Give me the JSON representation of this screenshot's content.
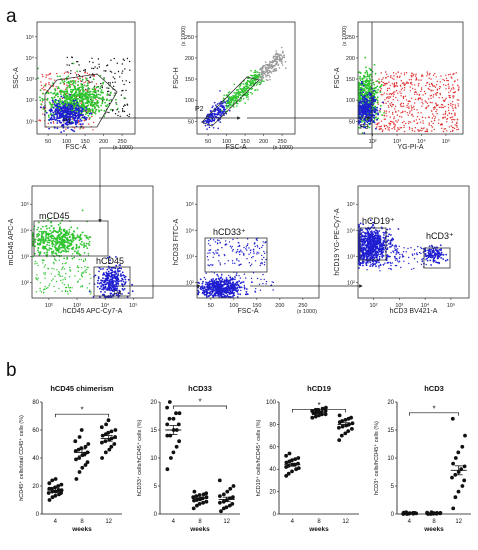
{
  "panel_a_label": "a",
  "panel_b_label": "b",
  "flow_plots": [
    {
      "id": "p1",
      "xlabel": "FSC-A",
      "xunit": "(x 1000)",
      "ylabel": "SSC-A",
      "xticks": [
        "50",
        "100",
        "150",
        "200",
        "250"
      ],
      "yticks": [
        "10¹",
        "10²",
        "10³",
        "10⁴",
        "10⁵"
      ],
      "gates": [
        "P1"
      ],
      "xscale": "linear",
      "yscale": "log"
    },
    {
      "id": "p2",
      "xlabel": "FSC-A",
      "xunit": "(x 1000)",
      "ylabel": "FSC-H",
      "yunit": "(x 1000)",
      "xticks": [
        "50",
        "100",
        "150",
        "200",
        "250"
      ],
      "yticks": [
        "50",
        "100",
        "150",
        "200",
        "250"
      ],
      "gates": [
        "P2"
      ],
      "xscale": "linear",
      "yscale": "linear"
    },
    {
      "id": "p3",
      "xlabel": "YG-PI-A",
      "ylabel": "FSC-A",
      "yunit": "(x 1000)",
      "xticks": [
        "10²",
        "10³",
        "10⁴",
        "10⁵"
      ],
      "yticks": [
        "50",
        "100",
        "150",
        "200",
        "250"
      ],
      "gates": [
        "P3"
      ],
      "xscale": "log",
      "yscale": "linear"
    },
    {
      "id": "p4",
      "xlabel": "hCD45 APC-Cy7-A",
      "ylabel": "mCD45 APC-A",
      "xticks": [
        "10²",
        "10³",
        "10⁴",
        "10⁵"
      ],
      "yticks": [
        "10²",
        "10³",
        "10⁴",
        "10⁵"
      ],
      "gates": [
        "mCD45",
        "hCD45",
        "P4"
      ],
      "xscale": "log",
      "yscale": "log"
    },
    {
      "id": "p5",
      "xlabel": "FSC-A",
      "ylabel": "hCD33 FITC-A",
      "xunit": "(x 1000)",
      "xticks": [
        "50",
        "100",
        "150",
        "200",
        "250"
      ],
      "yticks": [
        "10²",
        "10³",
        "10⁴",
        "10⁵"
      ],
      "gates": [
        "hCD33⁺"
      ],
      "xscale": "linear",
      "yscale": "log"
    },
    {
      "id": "p6",
      "xlabel": "hCD3 BV421-A",
      "ylabel": "hCD19 YG-PE-Cy7-A",
      "xticks": [
        "10²",
        "10³",
        "10⁴",
        "10⁵"
      ],
      "yticks": [
        "10²",
        "10³",
        "10⁴",
        "10⁵"
      ],
      "gates": [
        "hCD19⁺",
        "hCD3⁺"
      ],
      "xscale": "log",
      "yscale": "log"
    }
  ],
  "chart_data": [
    {
      "type": "scatter",
      "title": "hCD45 chimerism",
      "xlabel": "weeks",
      "ylabel": "hCD45⁺ cells/total CD45⁺ cells (%)",
      "categories": [
        "4",
        "8",
        "12"
      ],
      "ylim": [
        0,
        80
      ],
      "yticks": [
        "0",
        "20",
        "40",
        "60",
        "80"
      ],
      "significance": "*",
      "sig_from": "4",
      "sig_to": "12",
      "series": [
        {
          "category": "4",
          "values": [
            10,
            12,
            13,
            14,
            15,
            15,
            16,
            16,
            17,
            17,
            18,
            18,
            19,
            20,
            21,
            22,
            24,
            25
          ]
        },
        {
          "category": "8",
          "values": [
            25,
            30,
            33,
            35,
            37,
            39,
            40,
            42,
            43,
            44,
            45,
            46,
            47,
            48,
            50,
            52,
            55,
            60
          ]
        },
        {
          "category": "12",
          "values": [
            40,
            44,
            46,
            48,
            50,
            51,
            52,
            53,
            54,
            55,
            56,
            57,
            58,
            59,
            60,
            62,
            64,
            67
          ]
        }
      ],
      "means": [
        17,
        44,
        54
      ],
      "sem": [
        1.5,
        2.5,
        2
      ]
    },
    {
      "type": "scatter",
      "title": "hCD33",
      "xlabel": "weeks",
      "ylabel": "hCD33⁺ cells/hCD45⁺ cells (%)",
      "categories": [
        "4",
        "8",
        "12"
      ],
      "ylim": [
        0,
        20
      ],
      "yticks": [
        "0",
        "5",
        "10",
        "15",
        "20"
      ],
      "significance": "*",
      "sig_from": "4",
      "sig_to": "12",
      "series": [
        {
          "category": "4",
          "values": [
            8,
            10,
            11,
            12,
            13,
            14,
            14,
            15,
            15,
            16,
            16,
            17,
            17,
            18,
            18,
            19,
            20
          ]
        },
        {
          "category": "8",
          "values": [
            1,
            1.5,
            1.8,
            2,
            2.2,
            2.4,
            2.5,
            2.6,
            2.8,
            3,
            3,
            3.2,
            3.4,
            3.5,
            3.7,
            4
          ]
        },
        {
          "category": "12",
          "values": [
            0.5,
            1,
            1.2,
            1.5,
            1.8,
            2,
            2.2,
            2.5,
            2.8,
            3,
            3.2,
            3.5,
            4,
            4.5,
            5,
            6
          ]
        }
      ],
      "means": [
        15,
        2.8,
        2.6
      ],
      "sem": [
        0.8,
        0.2,
        0.4
      ]
    },
    {
      "type": "scatter",
      "title": "hCD19",
      "xlabel": "weeks",
      "ylabel": "hCD19⁺ cells/hCD45⁺ cells (%)",
      "categories": [
        "4",
        "8",
        "12"
      ],
      "ylim": [
        0,
        100
      ],
      "yticks": [
        "0",
        "20",
        "40",
        "60",
        "80",
        "100"
      ],
      "significance": "*",
      "sig_from": "4",
      "sig_to": "12",
      "series": [
        {
          "category": "4",
          "values": [
            34,
            36,
            38,
            40,
            41,
            42,
            43,
            44,
            44,
            45,
            46,
            47,
            48,
            49,
            50,
            52,
            54
          ]
        },
        {
          "category": "8",
          "values": [
            86,
            87,
            88,
            89,
            89,
            90,
            90,
            91,
            91,
            92,
            92,
            93,
            93,
            94,
            95
          ]
        },
        {
          "category": "12",
          "values": [
            66,
            70,
            72,
            74,
            76,
            77,
            78,
            79,
            80,
            81,
            82,
            83,
            84,
            85,
            86,
            88
          ]
        }
      ],
      "means": [
        44,
        91,
        80
      ],
      "sem": [
        1.3,
        0.6,
        1.5
      ]
    },
    {
      "type": "scatter",
      "title": "hCD3",
      "xlabel": "weeks",
      "ylabel": "hCD3⁺ cells/hCD45⁺ cells (%)",
      "categories": [
        "4",
        "8",
        "12"
      ],
      "ylim": [
        0,
        20
      ],
      "yticks": [
        "0",
        "5",
        "10",
        "15",
        "20"
      ],
      "significance": "*",
      "sig_from": "4",
      "sig_to": "12",
      "series": [
        {
          "category": "4",
          "values": [
            0,
            0,
            0.05,
            0.05,
            0.1,
            0.1,
            0.1,
            0.15,
            0.2,
            0.2,
            0.25,
            0.3
          ]
        },
        {
          "category": "8",
          "values": [
            0,
            0,
            0.05,
            0.05,
            0.1,
            0.1,
            0.1,
            0.15,
            0.2,
            0.2,
            0.25,
            0.3
          ]
        },
        {
          "category": "12",
          "values": [
            1,
            3,
            4,
            5,
            6,
            6.5,
            7,
            7.5,
            8,
            8.5,
            9,
            10,
            11,
            12,
            14,
            17
          ]
        }
      ],
      "means": [
        0.1,
        0.1,
        7.8
      ],
      "sem": [
        0.03,
        0.03,
        0.8
      ]
    }
  ],
  "colors": {
    "green": "#2fc42f",
    "blue": "#1f1fd0",
    "red": "#e03030",
    "gray": "#9a9a9a",
    "black": "#111111"
  }
}
